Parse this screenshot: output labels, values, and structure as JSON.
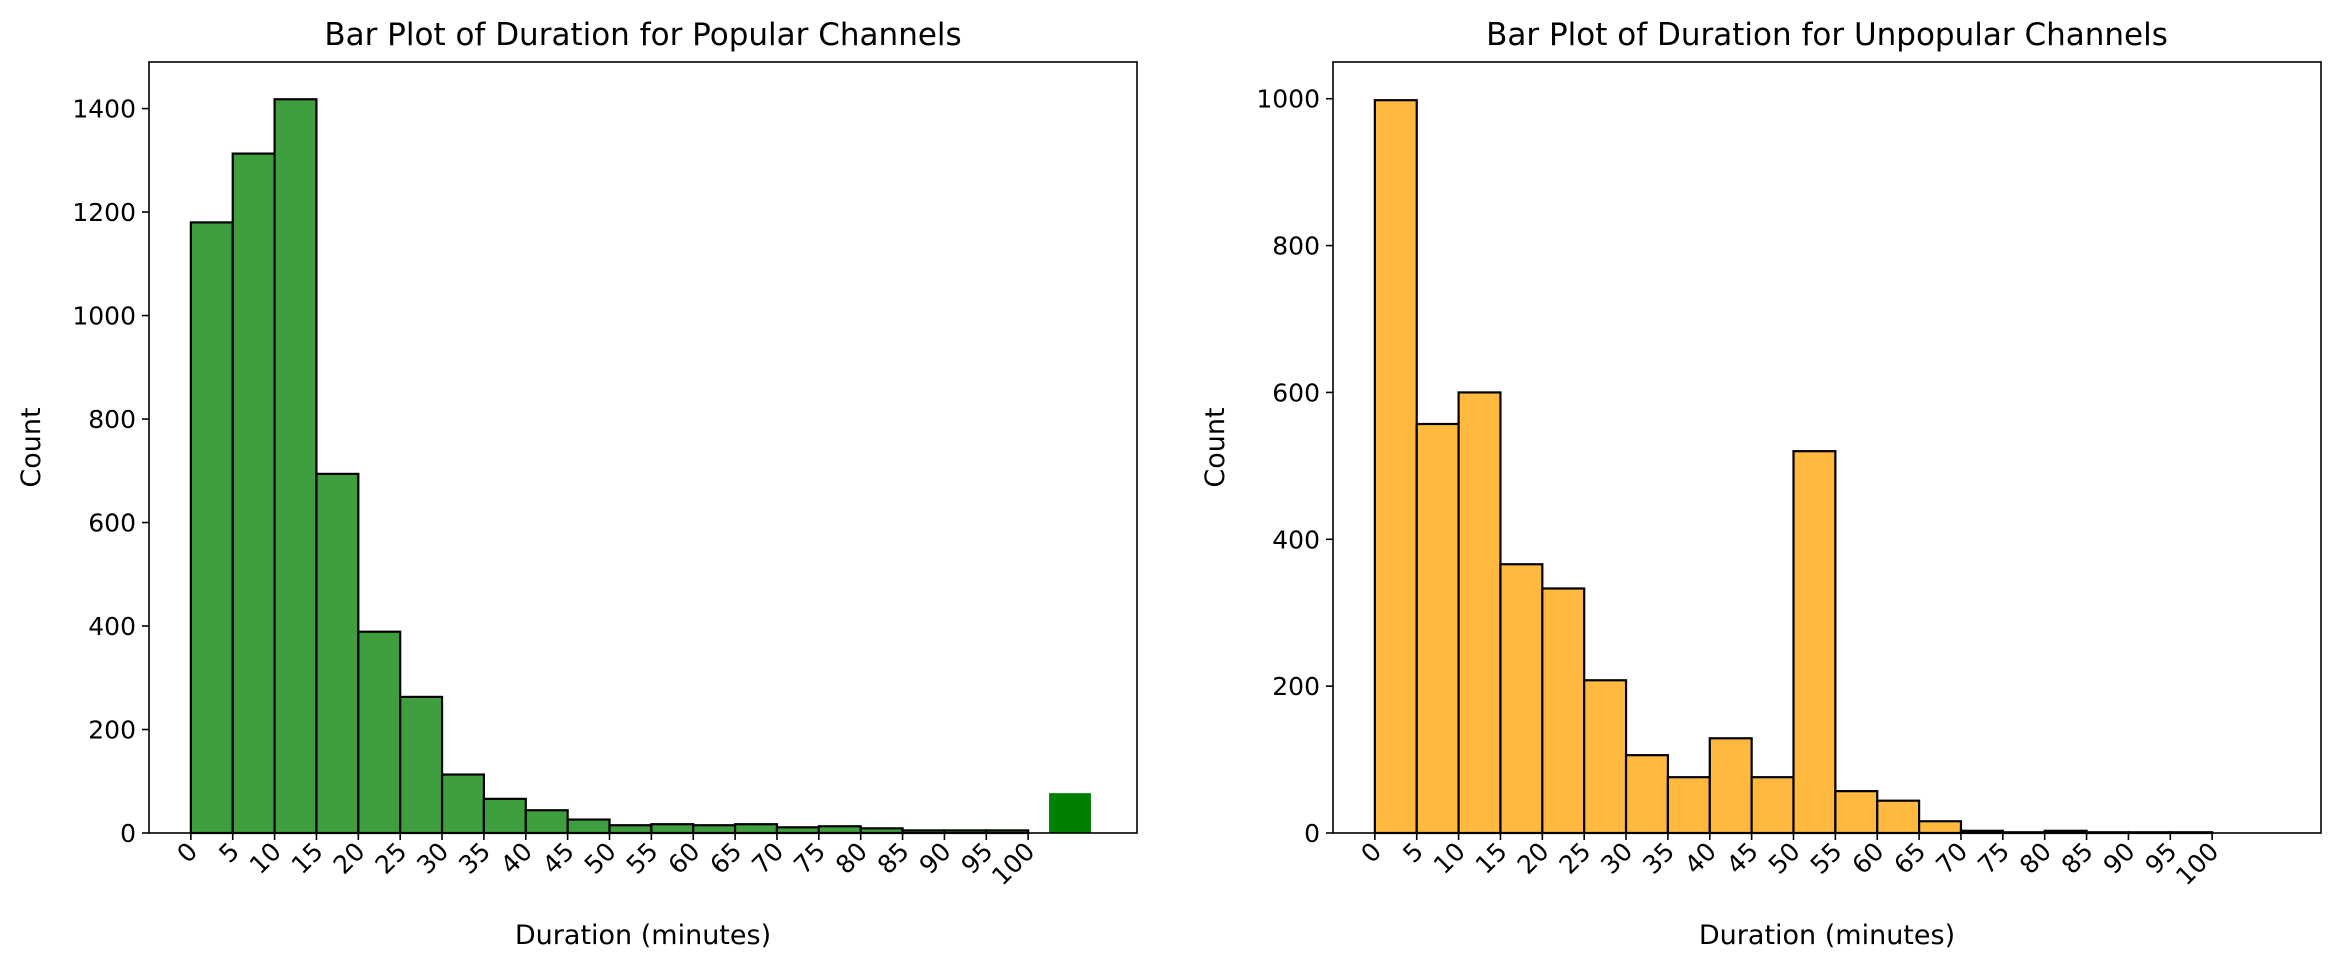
{
  "chart_data": [
    {
      "type": "bar",
      "title": "Bar Plot of Duration for Popular Channels",
      "xlabel": "Duration (minutes)",
      "ylabel": "Count",
      "x_ticks": [
        "0",
        "5",
        "10",
        "15",
        "20",
        "25",
        "30",
        "35",
        "40",
        "45",
        "50",
        "55",
        "60",
        "65",
        "70",
        "75",
        "80",
        "85",
        "90",
        "95",
        "100"
      ],
      "y_ticks": [
        "0",
        "200",
        "400",
        "600",
        "800",
        "1000",
        "1200",
        "1400"
      ],
      "xlim": [
        -5,
        113
      ],
      "ylim": [
        0,
        1490
      ],
      "bin_width": 5,
      "bins": [
        {
          "x0": 0,
          "value": 1180
        },
        {
          "x0": 5,
          "value": 1313
        },
        {
          "x0": 10,
          "value": 1418
        },
        {
          "x0": 15,
          "value": 694
        },
        {
          "x0": 20,
          "value": 389
        },
        {
          "x0": 25,
          "value": 263
        },
        {
          "x0": 30,
          "value": 113
        },
        {
          "x0": 35,
          "value": 66
        },
        {
          "x0": 40,
          "value": 44
        },
        {
          "x0": 45,
          "value": 26
        },
        {
          "x0": 50,
          "value": 15
        },
        {
          "x0": 55,
          "value": 17
        },
        {
          "x0": 60,
          "value": 15
        },
        {
          "x0": 65,
          "value": 17
        },
        {
          "x0": 70,
          "value": 11
        },
        {
          "x0": 75,
          "value": 13
        },
        {
          "x0": 80,
          "value": 9
        },
        {
          "x0": 85,
          "value": 5
        },
        {
          "x0": 90,
          "value": 5
        },
        {
          "x0": 95,
          "value": 5
        }
      ],
      "overflow_bar": {
        "x0": 102.5,
        "value": 77,
        "color": "#008000"
      },
      "bar_color": "#3f9f3f",
      "edge_color": "#000000",
      "grid": false
    },
    {
      "type": "bar",
      "title": "Bar Plot of Duration for Unpopular Channels",
      "xlabel": "Duration (minutes)",
      "ylabel": "Count",
      "x_ticks": [
        "0",
        "5",
        "10",
        "15",
        "20",
        "25",
        "30",
        "35",
        "40",
        "45",
        "50",
        "55",
        "60",
        "65",
        "70",
        "75",
        "80",
        "85",
        "90",
        "95",
        "100"
      ],
      "y_ticks": [
        "0",
        "200",
        "400",
        "600",
        "800",
        "1000"
      ],
      "xlim": [
        -5,
        113
      ],
      "ylim": [
        0,
        1050
      ],
      "bin_width": 5,
      "bins": [
        {
          "x0": 0,
          "value": 998
        },
        {
          "x0": 5,
          "value": 557
        },
        {
          "x0": 10,
          "value": 600
        },
        {
          "x0": 15,
          "value": 366
        },
        {
          "x0": 20,
          "value": 333
        },
        {
          "x0": 25,
          "value": 208
        },
        {
          "x0": 30,
          "value": 106
        },
        {
          "x0": 35,
          "value": 76
        },
        {
          "x0": 40,
          "value": 129
        },
        {
          "x0": 45,
          "value": 76
        },
        {
          "x0": 50,
          "value": 520
        },
        {
          "x0": 55,
          "value": 57
        },
        {
          "x0": 60,
          "value": 44
        },
        {
          "x0": 65,
          "value": 16
        },
        {
          "x0": 70,
          "value": 3
        },
        {
          "x0": 75,
          "value": 1
        },
        {
          "x0": 80,
          "value": 3
        },
        {
          "x0": 85,
          "value": 1
        },
        {
          "x0": 90,
          "value": 1
        },
        {
          "x0": 95,
          "value": 1
        }
      ],
      "bar_color": "#ffb93f",
      "edge_color": "#000000",
      "grid": false
    }
  ]
}
